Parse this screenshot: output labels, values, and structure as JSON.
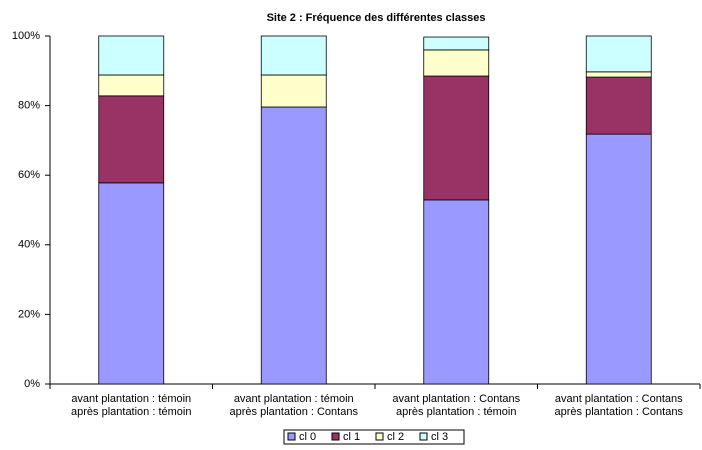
{
  "chart_data": {
    "type": "stacked_bar",
    "title": "Site 2 : Fréquence des différentes classes",
    "categories": [
      [
        "avant plantation : témoin",
        "après plantation : témoin"
      ],
      [
        "avant plantation : témoin",
        "après plantation : Contans"
      ],
      [
        "avant plantation : Contans",
        "après plantation : témoin"
      ],
      [
        "avant plantation : Contans",
        "après plantation : Contans"
      ]
    ],
    "series": [
      {
        "name": "cl 0",
        "color": "#9999ff",
        "values": [
          57.8,
          79.6,
          52.9,
          71.8
        ]
      },
      {
        "name": "cl 1",
        "color": "#993366",
        "values": [
          25.0,
          0,
          35.6,
          16.4
        ]
      },
      {
        "name": "cl 2",
        "color": "#ffffcc",
        "values": [
          6.0,
          9.2,
          7.5,
          1.5
        ]
      },
      {
        "name": "cl 3",
        "color": "#ccffff",
        "values": [
          11.2,
          11.2,
          3.7,
          10.3
        ]
      }
    ],
    "ylim": [
      0,
      100
    ],
    "yticks": [
      {
        "value": 0,
        "label": "0%"
      },
      {
        "value": 20,
        "label": "20%"
      },
      {
        "value": 40,
        "label": "40%"
      },
      {
        "value": 60,
        "label": "60%"
      },
      {
        "value": 80,
        "label": "80%"
      },
      {
        "value": 100,
        "label": "100%"
      }
    ],
    "legend": "bottom"
  }
}
